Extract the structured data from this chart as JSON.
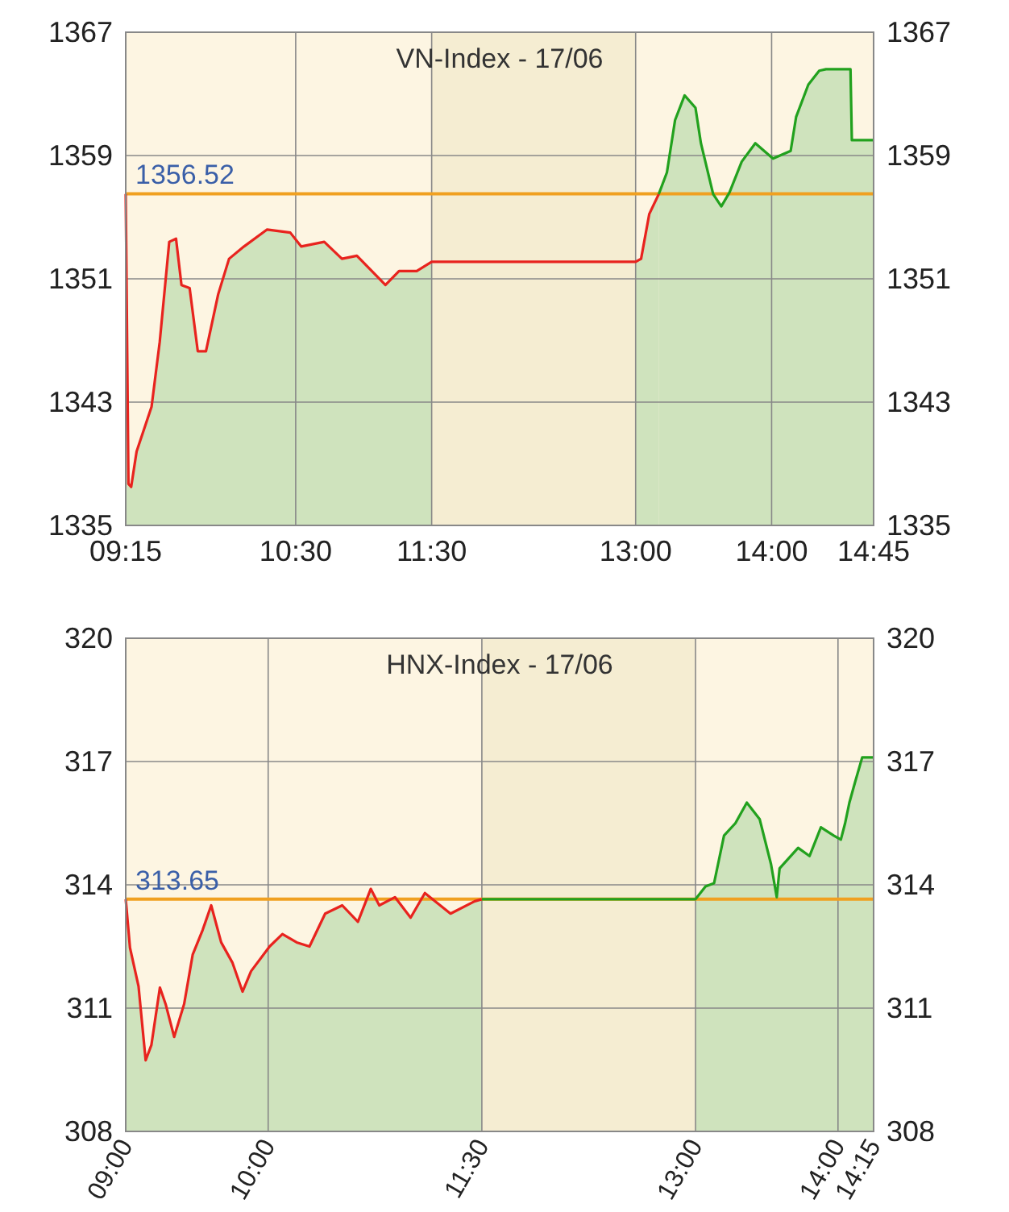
{
  "chart_data": [
    {
      "type": "area",
      "title": "VN-Index - 17/06",
      "xlim": [
        9.25,
        14.75
      ],
      "xticks": [
        {
          "value": 9.25,
          "label": "09:15"
        },
        {
          "value": 10.5,
          "label": "10:30"
        },
        {
          "value": 11.5,
          "label": "11:30"
        },
        {
          "value": 13,
          "label": "13:00"
        },
        {
          "value": 14,
          "label": "14:00"
        },
        {
          "value": 14.75,
          "label": "14:45"
        }
      ],
      "ylim": [
        1335,
        1367
      ],
      "yticks": [
        1335,
        1343,
        1351,
        1359,
        1367
      ],
      "y2lim": [
        1335,
        1367
      ],
      "y2ticks": [
        1335,
        1343,
        1351,
        1359,
        1367
      ],
      "grid": true,
      "ref_lines": [
        {
          "axis": "y",
          "value": 1356.52,
          "label": "1356.52",
          "color": "#f0a020"
        }
      ],
      "bands": [
        {
          "axis": "x",
          "from": 11.5,
          "to": 13,
          "color": "#f5edd2"
        }
      ],
      "series": [
        {
          "color": "#e8231e",
          "x": [
            9.25,
            9.27,
            9.29,
            9.33,
            9.44,
            9.5,
            9.57,
            9.62,
            9.66,
            9.72,
            9.78,
            9.84,
            9.93,
            10.01,
            10.12,
            10.29,
            10.46,
            10.54,
            10.71,
            10.84,
            10.95,
            11.16,
            11.26,
            11.39,
            11.5,
            13,
            13.04,
            13.1,
            13.17
          ],
          "values": [
            1356.5,
            1337.7,
            1337.5,
            1339.8,
            1342.7,
            1346.9,
            1353.4,
            1353.6,
            1350.6,
            1350.4,
            1346.3,
            1346.3,
            1350,
            1352.3,
            1353.1,
            1354.2,
            1354,
            1353.1,
            1353.4,
            1352.3,
            1352.5,
            1350.6,
            1351.5,
            1351.5,
            1352.1,
            1352.1,
            1352.3,
            1355.2,
            1356.5
          ]
        },
        {
          "color": "#22a11e",
          "x": [
            13.17,
            13.23,
            13.29,
            13.36,
            13.44,
            13.48,
            13.57,
            13.63,
            13.69,
            13.78,
            13.88,
            14.01,
            14.14,
            14.18,
            14.27,
            14.35,
            14.4,
            14.58,
            14.59,
            14.75
          ],
          "values": [
            1356.5,
            1357.9,
            1361.3,
            1362.9,
            1362.1,
            1359.8,
            1356.5,
            1355.7,
            1356.6,
            1358.6,
            1359.8,
            1358.8,
            1359.3,
            1361.5,
            1363.6,
            1364.5,
            1364.6,
            1364.6,
            1360,
            1360
          ]
        }
      ]
    },
    {
      "type": "area",
      "title": "HNX-Index - 17/06",
      "xlim": [
        9,
        14.25
      ],
      "xticks": [
        {
          "value": 9,
          "label": "09:00"
        },
        {
          "value": 10,
          "label": "10:00"
        },
        {
          "value": 11.5,
          "label": "11:30"
        },
        {
          "value": 13,
          "label": "13:00"
        },
        {
          "value": 14,
          "label": "14:00"
        },
        {
          "value": 14.25,
          "label": "14:15"
        }
      ],
      "ylim": [
        308,
        320
      ],
      "yticks": [
        308,
        311,
        314,
        317,
        320
      ],
      "y2lim": [
        308,
        320
      ],
      "y2ticks": [
        308,
        311,
        314,
        317,
        320
      ],
      "grid": true,
      "ref_lines": [
        {
          "axis": "y",
          "value": 313.65,
          "label": "313.65",
          "color": "#f0a020"
        }
      ],
      "bands": [
        {
          "axis": "x",
          "from": 11.5,
          "to": 13,
          "color": "#f5edd2"
        }
      ],
      "series": [
        {
          "color": "#e8231e",
          "x": [
            9,
            9.03,
            9.09,
            9.14,
            9.18,
            9.24,
            9.28,
            9.34,
            9.41,
            9.47,
            9.54,
            9.6,
            9.67,
            9.75,
            9.82,
            9.88,
            10.01,
            10.1,
            10.2,
            10.29,
            10.4,
            10.52,
            10.63,
            10.72,
            10.78,
            10.89,
            11,
            11.1,
            11.28,
            11.45,
            11.5
          ],
          "values": [
            313.65,
            312.47,
            311.53,
            309.73,
            310.1,
            311.5,
            311.1,
            310.3,
            311.1,
            312.3,
            312.9,
            313.5,
            312.6,
            312.1,
            311.4,
            311.9,
            312.5,
            312.8,
            312.6,
            312.5,
            313.3,
            313.5,
            313.1,
            313.9,
            313.5,
            313.7,
            313.2,
            313.8,
            313.3,
            313.6,
            313.65
          ]
        },
        {
          "color": "#22a11e",
          "x": [
            11.5,
            13,
            13.07,
            13.13,
            13.2,
            13.28,
            13.36,
            13.45,
            13.53,
            13.57,
            13.59,
            13.72,
            13.8,
            13.88,
            13.97,
            14.02,
            14.05,
            14.08,
            14.12,
            14.17,
            14.25
          ],
          "values": [
            313.65,
            313.65,
            313.96,
            314.04,
            315.2,
            315.5,
            316,
            315.6,
            314.5,
            313.7,
            314.4,
            314.9,
            314.7,
            315.4,
            315.2,
            315.1,
            315.5,
            316,
            316.5,
            317.1,
            317.1
          ]
        }
      ]
    }
  ]
}
